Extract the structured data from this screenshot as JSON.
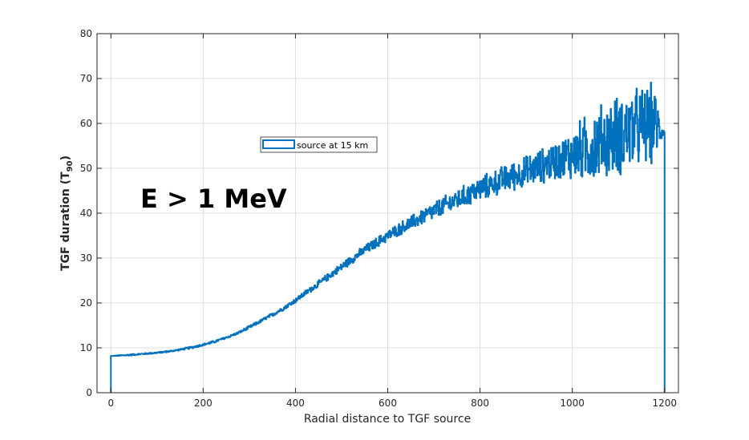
{
  "chart_data": {
    "type": "line",
    "title": "",
    "xlabel": "Radial distance to TGF source",
    "ylabel": "TGF duration (T",
    "ylabel_subscript": "90",
    "ylabel_close": ")",
    "xlim": [
      -30,
      1230
    ],
    "ylim": [
      0,
      80
    ],
    "xticks": [
      0,
      200,
      400,
      600,
      800,
      1000,
      1200
    ],
    "yticks": [
      0,
      10,
      20,
      30,
      40,
      50,
      60,
      70,
      80
    ],
    "xtick_labels": [
      "0",
      "200",
      "400",
      "600",
      "800",
      "1000",
      "1200"
    ],
    "ytick_labels": [
      "0",
      "10",
      "20",
      "30",
      "40",
      "50",
      "60",
      "70",
      "80"
    ],
    "grid": true,
    "legend": {
      "placement": "upper-center",
      "entries": [
        "source at 15 km"
      ]
    },
    "annotation": "E > 1 MeV",
    "colors": {
      "series": "#0072bd",
      "grid": "#dfdfdf",
      "axis": "#262626"
    },
    "series": [
      {
        "name": "source at 15 km",
        "x": [
          0,
          0,
          25,
          50,
          75,
          100,
          125,
          150,
          175,
          200,
          225,
          250,
          275,
          300,
          325,
          350,
          375,
          400,
          425,
          450,
          475,
          500,
          525,
          550,
          575,
          600,
          625,
          650,
          675,
          700,
          725,
          750,
          775,
          800,
          825,
          850,
          875,
          900,
          925,
          950,
          975,
          1000,
          1025,
          1050,
          1075,
          1100,
          1125,
          1150,
          1175,
          1200,
          1200
        ],
        "y": [
          0,
          8.2,
          8.3,
          8.5,
          8.7,
          8.9,
          9.2,
          9.6,
          10.1,
          10.7,
          11.4,
          12.3,
          13.3,
          14.6,
          16.0,
          17.4,
          18.9,
          20.6,
          22.5,
          24.3,
          26.2,
          28.1,
          30.0,
          31.8,
          33.4,
          35.0,
          36.5,
          37.8,
          39.2,
          40.5,
          41.8,
          43.0,
          44.2,
          45.4,
          46.5,
          47.5,
          48.4,
          49.3,
          50.2,
          51.2,
          52.0,
          53.1,
          54.3,
          55.4,
          56.5,
          57.4,
          58.3,
          59.2,
          60.0,
          58.0,
          0
        ],
        "noise_amplitude": [
          0,
          0,
          0.2,
          0.2,
          0.2,
          0.2,
          0.2,
          0.2,
          0.3,
          0.3,
          0.3,
          0.3,
          0.3,
          0.4,
          0.4,
          0.5,
          0.5,
          0.6,
          0.7,
          0.8,
          0.9,
          1.0,
          1.1,
          1.2,
          1.3,
          1.4,
          1.6,
          1.8,
          2.0,
          2.2,
          2.4,
          2.6,
          2.8,
          3.0,
          3.2,
          3.4,
          3.6,
          3.9,
          4.2,
          4.6,
          5.0,
          6.5,
          8.0,
          9.0,
          9.5,
          10.0,
          10.0,
          10.0,
          10.0,
          0,
          0
        ]
      }
    ]
  }
}
